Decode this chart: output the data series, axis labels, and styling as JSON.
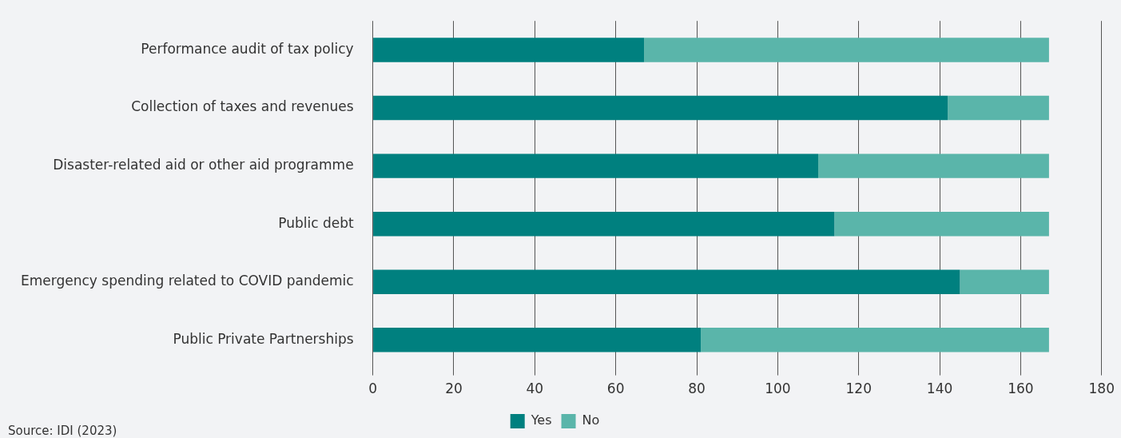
{
  "chart_data": {
    "type": "bar",
    "orientation": "horizontal",
    "stacked": true,
    "categories": [
      "Performance audit of tax policy",
      "Collection of taxes and revenues",
      "Disaster-related aid or other aid programme",
      "Public debt",
      "Emergency spending related to COVID pandemic",
      "Public Private Partnerships"
    ],
    "series": [
      {
        "name": "Yes",
        "color": "#00807f",
        "values": [
          67,
          142,
          110,
          114,
          145,
          81
        ]
      },
      {
        "name": "No",
        "color": "#5ab5aa",
        "values": [
          100,
          25,
          57,
          53,
          22,
          86
        ]
      }
    ],
    "xlim": [
      0,
      180
    ],
    "xticks": [
      0,
      20,
      40,
      60,
      80,
      100,
      120,
      140,
      160,
      180
    ],
    "grid": "x",
    "legend": "bottom",
    "annotations": [
      "Source: IDI (2023)"
    ]
  }
}
